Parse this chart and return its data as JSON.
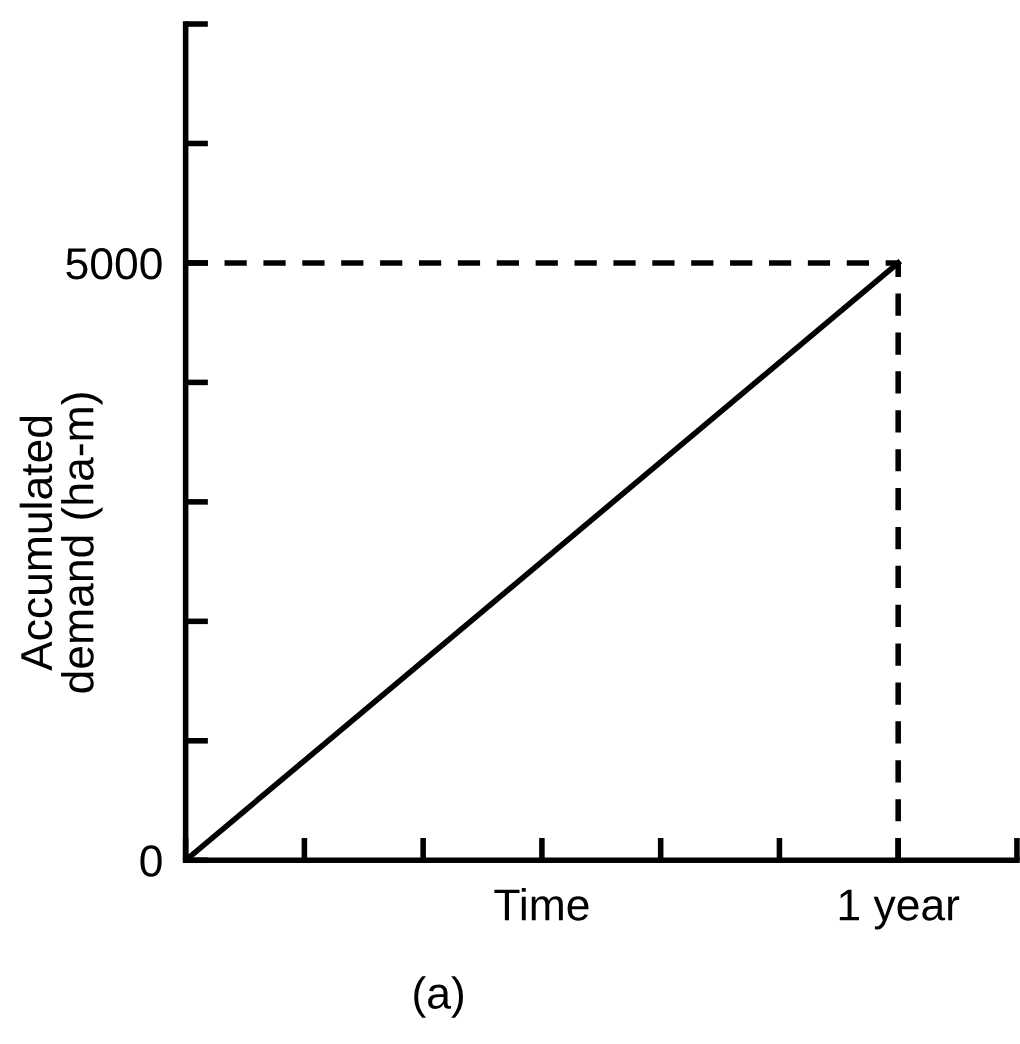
{
  "chart_data": {
    "type": "line",
    "ylabel": "Accumulated\ndemand (ha-m)",
    "categories": [
      null,
      null,
      null,
      "Time",
      null,
      null,
      "1 year",
      null
    ],
    "series": [
      {
        "color": "#000000",
        "values": [
          0,
          null,
          null,
          null,
          null,
          null,
          5000,
          null
        ]
      }
    ],
    "ylim": [
      0,
      7000
    ],
    "yticks": [
      0,
      {
        "value": 1000,
        "label": null
      },
      {
        "value": 2000,
        "label": null
      },
      {
        "value": 3000,
        "label": null
      },
      {
        "value": 4000,
        "label": null
      },
      5000,
      {
        "value": 6000,
        "label": null
      },
      {
        "value": 7000,
        "label": null
      }
    ],
    "ref_lines": [
      {
        "axis": "y",
        "value": 5000,
        "label": null,
        "color": "#000000",
        "line_style": "dashed"
      },
      {
        "axis": "x",
        "value": "1 year",
        "label": null,
        "color": "#000000",
        "line_style": "dashed"
      }
    ],
    "annotations": [
      "(a)"
    ],
    "grid": false,
    "legend": false,
    "marker": "none",
    "line_style": "solid"
  }
}
